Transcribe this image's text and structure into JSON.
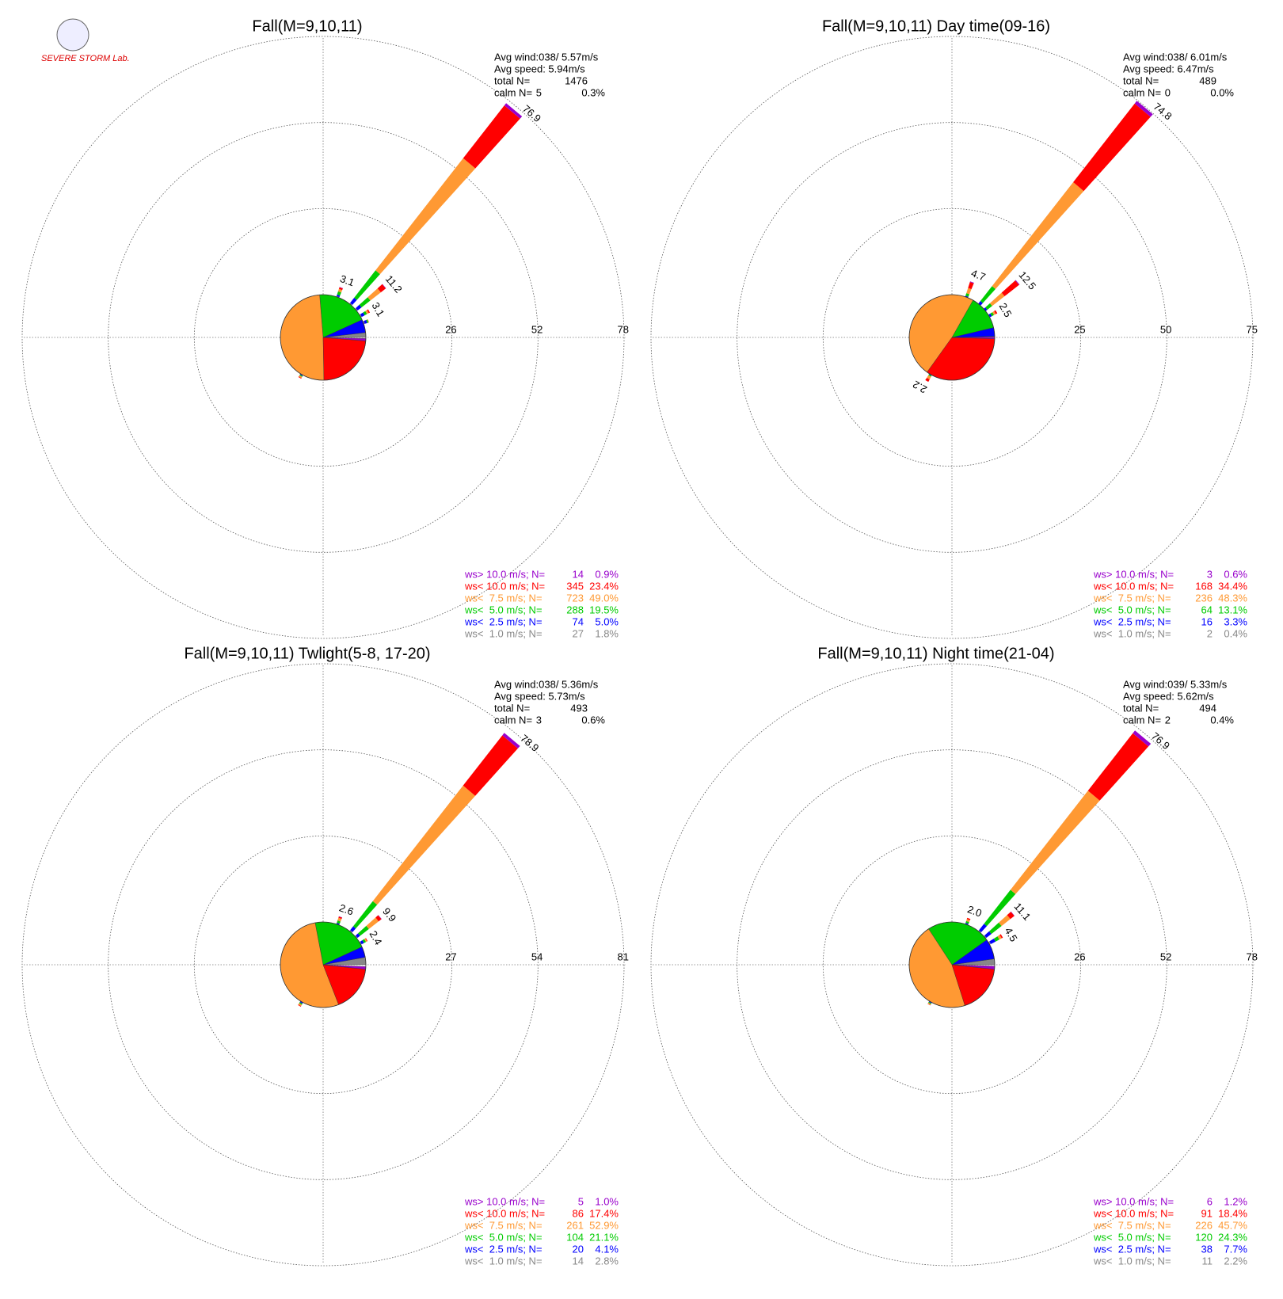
{
  "logo": "SEVERE STORM Lab.",
  "chart_data": [
    {
      "type": "wind-rose",
      "title": "Fall(M=9,10,11)",
      "stats": {
        "avg_wind": "Avg wind:038/ 5.57m/s",
        "avg_speed": "Avg speed: 5.94m/s",
        "total_label": "total N=",
        "total_n": 1476,
        "calm_label": "calm N=",
        "calm_n": 5,
        "calm_pct_label": "0.3%"
      },
      "rlim": [
        0,
        78
      ],
      "rticks": [
        26,
        52,
        78
      ],
      "series": [
        {
          "name": "ws> 10.0 m/s; N=",
          "color": "#9900cc",
          "count": 14,
          "percent": 0.9,
          "percent_label": "0.9%"
        },
        {
          "name": "ws< 10.0 m/s; N=",
          "color": "#ff0000",
          "count": 345,
          "percent": 23.4,
          "percent_label": "23.4%"
        },
        {
          "name": "ws<  7.5 m/s; N=",
          "color": "#ff9933",
          "count": 723,
          "percent": 49.0,
          "percent_label": "49.0%"
        },
        {
          "name": "ws<  5.0 m/s; N=",
          "color": "#00cc00",
          "count": 288,
          "percent": 19.5,
          "percent_label": "19.5%"
        },
        {
          "name": "ws<  2.5 m/s; N=",
          "color": "#0000ff",
          "count": 74,
          "percent": 5.0,
          "percent_label": "5.0%"
        },
        {
          "name": "ws<  1.0 m/s; N=",
          "color": "#888888",
          "count": 27,
          "percent": 1.8,
          "percent_label": "1.8%"
        }
      ],
      "spikes": [
        {
          "direction": 20,
          "label": "3.1",
          "values": [
            0.1,
            0.5,
            0.8,
            1.0,
            0.5,
            0.2
          ]
        },
        {
          "direction": 40,
          "label": "76.9",
          "values": [
            0.9,
            20.2,
            43.0,
            10.5,
            2.0,
            0.3
          ]
        },
        {
          "direction": 50,
          "label": "11.2",
          "values": [
            0.1,
            1.9,
            4.0,
            3.4,
            1.5,
            0.3
          ]
        },
        {
          "direction": 60,
          "label": "3.1",
          "values": [
            0,
            0.4,
            0.6,
            0.8,
            1.0,
            0.3
          ]
        },
        {
          "direction": 70,
          "values": [
            0,
            0,
            0.2,
            0.4,
            0.8,
            0.3
          ]
        },
        {
          "direction": 210,
          "values": [
            0,
            0.2,
            0.4,
            0.3,
            0.2,
            0.1
          ]
        }
      ]
    },
    {
      "type": "wind-rose",
      "title": "Fall(M=9,10,11) Day time(09-16)",
      "stats": {
        "avg_wind": "Avg wind:038/ 6.01m/s",
        "avg_speed": "Avg speed: 6.47m/s",
        "total_label": "total N=",
        "total_n": 489,
        "calm_label": "calm N=",
        "calm_n": 0,
        "calm_pct_label": "0.0%"
      },
      "rlim": [
        0,
        75
      ],
      "rticks": [
        25,
        50,
        75
      ],
      "series": [
        {
          "name": "ws> 10.0 m/s; N=",
          "color": "#9900cc",
          "count": 3,
          "percent": 0.6,
          "percent_label": "0.6%"
        },
        {
          "name": "ws< 10.0 m/s; N=",
          "color": "#ff0000",
          "count": 168,
          "percent": 34.4,
          "percent_label": "34.4%"
        },
        {
          "name": "ws<  7.5 m/s; N=",
          "color": "#ff9933",
          "count": 236,
          "percent": 48.3,
          "percent_label": "48.3%"
        },
        {
          "name": "ws<  5.0 m/s; N=",
          "color": "#00cc00",
          "count": 64,
          "percent": 13.1,
          "percent_label": "13.1%"
        },
        {
          "name": "ws<  2.5 m/s; N=",
          "color": "#0000ff",
          "count": 16,
          "percent": 3.3,
          "percent_label": "3.3%"
        },
        {
          "name": "ws<  1.0 m/s; N=",
          "color": "#888888",
          "count": 2,
          "percent": 0.4,
          "percent_label": "0.4%"
        }
      ],
      "spikes": [
        {
          "direction": 20,
          "label": "4.7",
          "values": [
            0.2,
            1.8,
            1.6,
            0.8,
            0.3,
            0
          ]
        },
        {
          "direction": 40,
          "label": "74.8",
          "values": [
            1.0,
            29.0,
            38.3,
            5.5,
            1.0,
            0
          ]
        },
        {
          "direction": 50,
          "label": "12.5",
          "values": [
            0.2,
            5.3,
            4.6,
            1.8,
            0.6,
            0
          ]
        },
        {
          "direction": 60,
          "label": "2.5",
          "values": [
            0,
            0.5,
            0.6,
            0.7,
            0.6,
            0.1
          ]
        },
        {
          "direction": 210,
          "label": "2.2",
          "values": [
            0,
            0.8,
            0.9,
            0.3,
            0.2,
            0
          ]
        }
      ]
    },
    {
      "type": "wind-rose",
      "title": "Fall(M=9,10,11) Twlight(5-8, 17-20)",
      "stats": {
        "avg_wind": "Avg wind:038/ 5.36m/s",
        "avg_speed": "Avg speed: 5.73m/s",
        "total_label": "total N=",
        "total_n": 493,
        "calm_label": "calm N=",
        "calm_n": 3,
        "calm_pct_label": "0.6%"
      },
      "rlim": [
        0,
        81
      ],
      "rticks": [
        27,
        54,
        81
      ],
      "series": [
        {
          "name": "ws> 10.0 m/s; N=",
          "color": "#9900cc",
          "count": 5,
          "percent": 1.0,
          "percent_label": "1.0%"
        },
        {
          "name": "ws< 10.0 m/s; N=",
          "color": "#ff0000",
          "count": 86,
          "percent": 17.4,
          "percent_label": "17.4%"
        },
        {
          "name": "ws<  7.5 m/s; N=",
          "color": "#ff9933",
          "count": 261,
          "percent": 52.9,
          "percent_label": "52.9%"
        },
        {
          "name": "ws<  5.0 m/s; N=",
          "color": "#00cc00",
          "count": 104,
          "percent": 21.1,
          "percent_label": "21.1%"
        },
        {
          "name": "ws<  2.5 m/s; N=",
          "color": "#0000ff",
          "count": 20,
          "percent": 4.1,
          "percent_label": "4.1%"
        },
        {
          "name": "ws<  1.0 m/s; N=",
          "color": "#888888",
          "count": 14,
          "percent": 2.8,
          "percent_label": "2.8%"
        }
      ],
      "spikes": [
        {
          "direction": 20,
          "label": "2.6",
          "values": [
            0.1,
            0.4,
            0.9,
            0.8,
            0.3,
            0.1
          ]
        },
        {
          "direction": 40,
          "label": "78.9",
          "values": [
            1.0,
            20.0,
            46.0,
            10.0,
            1.5,
            0.4
          ]
        },
        {
          "direction": 50,
          "label": "9.9",
          "values": [
            0.1,
            1.1,
            3.9,
            3.5,
            1.0,
            0.3
          ]
        },
        {
          "direction": 60,
          "label": "2.4",
          "values": [
            0,
            0.2,
            0.4,
            0.7,
            0.8,
            0.3
          ]
        },
        {
          "direction": 210,
          "values": [
            0,
            0.2,
            0.5,
            0.4,
            0.3,
            0.1
          ]
        }
      ]
    },
    {
      "type": "wind-rose",
      "title": "Fall(M=9,10,11) Night time(21-04)",
      "stats": {
        "avg_wind": "Avg wind:039/ 5.33m/s",
        "avg_speed": "Avg speed: 5.62m/s",
        "total_label": "total N=",
        "total_n": 494,
        "calm_label": "calm N=",
        "calm_n": 2,
        "calm_pct_label": "0.4%"
      },
      "rlim": [
        0,
        78
      ],
      "rticks": [
        26,
        52,
        78
      ],
      "series": [
        {
          "name": "ws> 10.0 m/s; N=",
          "color": "#9900cc",
          "count": 6,
          "percent": 1.2,
          "percent_label": "1.2%"
        },
        {
          "name": "ws< 10.0 m/s; N=",
          "color": "#ff0000",
          "count": 91,
          "percent": 18.4,
          "percent_label": "18.4%"
        },
        {
          "name": "ws<  7.5 m/s; N=",
          "color": "#ff9933",
          "count": 226,
          "percent": 45.7,
          "percent_label": "45.7%"
        },
        {
          "name": "ws<  5.0 m/s; N=",
          "color": "#00cc00",
          "count": 120,
          "percent": 24.3,
          "percent_label": "24.3%"
        },
        {
          "name": "ws<  2.5 m/s; N=",
          "color": "#0000ff",
          "count": 38,
          "percent": 7.7,
          "percent_label": "7.7%"
        },
        {
          "name": "ws<  1.0 m/s; N=",
          "color": "#888888",
          "count": 11,
          "percent": 2.2,
          "percent_label": "2.2%"
        }
      ],
      "spikes": [
        {
          "direction": 20,
          "label": "2.0",
          "values": [
            0,
            0.4,
            0.6,
            0.6,
            0.3,
            0.1
          ]
        },
        {
          "direction": 40,
          "label": "76.9",
          "values": [
            1.1,
            22.0,
            38.0,
            13.0,
            2.5,
            0.3
          ]
        },
        {
          "direction": 50,
          "label": "11.1",
          "values": [
            0.1,
            1.5,
            3.4,
            3.9,
            1.9,
            0.3
          ]
        },
        {
          "direction": 60,
          "label": "4.5",
          "values": [
            0,
            0.4,
            0.8,
            1.3,
            1.6,
            0.4
          ]
        },
        {
          "direction": 210,
          "values": [
            0,
            0.1,
            0.3,
            0.3,
            0.2,
            0.1
          ]
        }
      ]
    }
  ]
}
